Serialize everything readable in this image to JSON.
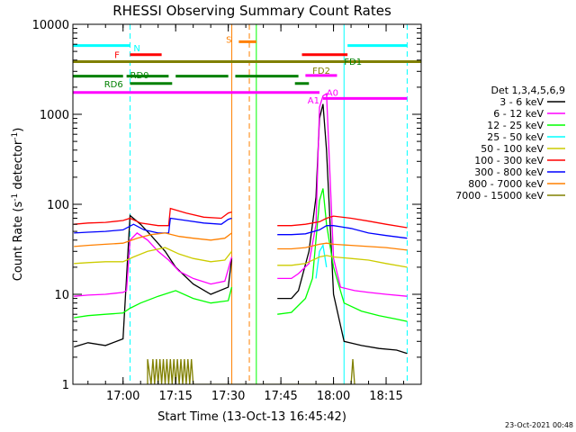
{
  "chart_data": {
    "type": "line",
    "title": "RHESSI Observing Summary Count Rates",
    "xlabel": "Start Time (13-Oct-13 16:45:42)",
    "ylabel": "Count Rate (s",
    "ylabel_sup1": "-1",
    "ylabel_mid": " detector",
    "ylabel_sup2": "-1",
    "ylabel_end": ")",
    "y_scale": "log",
    "ylim": [
      1,
      10000
    ],
    "xlim": [
      "16:45:42",
      "18:25:00"
    ],
    "x_ticks": [
      {
        "t": "17:00",
        "label": "17:00"
      },
      {
        "t": "17:15",
        "label": "17:15"
      },
      {
        "t": "17:30",
        "label": "17:30"
      },
      {
        "t": "17:45",
        "label": "17:45"
      },
      {
        "t": "18:00",
        "label": "18:00"
      },
      {
        "t": "18:15",
        "label": "18:15"
      }
    ],
    "y_ticks": [
      {
        "v": 1,
        "label": "1"
      },
      {
        "v": 10,
        "label": "10"
      },
      {
        "v": 100,
        "label": "100"
      },
      {
        "v": 1000,
        "label": "1000"
      },
      {
        "v": 10000,
        "label": "10000"
      }
    ],
    "legend_title": "Det 1,3,4,5,6,9",
    "legend_position": "right",
    "timestamp": "23-Oct-2021 00:48",
    "series": [
      {
        "name": "3 - 6 keV",
        "color": "#000000",
        "points": [
          [
            "16:46",
            2.6
          ],
          [
            "16:50",
            2.9
          ],
          [
            "16:55",
            2.7
          ],
          [
            "17:00",
            3.2
          ],
          [
            "17:02",
            75
          ],
          [
            "17:05",
            60
          ],
          [
            "17:08",
            45
          ],
          [
            "17:12",
            30
          ],
          [
            "17:15",
            20
          ],
          [
            "17:20",
            13
          ],
          [
            "17:25",
            10
          ],
          [
            "17:30",
            12
          ],
          [
            "17:31",
            25
          ],
          [
            "17:41",
            null
          ],
          [
            "17:44",
            9
          ],
          [
            "17:48",
            9
          ],
          [
            "17:50",
            11
          ],
          [
            "17:53",
            30
          ],
          [
            "17:55",
            120
          ],
          [
            "17:56",
            900
          ],
          [
            "17:57",
            1300
          ],
          [
            "17:58",
            400
          ],
          [
            "18:00",
            10
          ],
          [
            "18:03",
            3.0
          ],
          [
            "18:08",
            2.7
          ],
          [
            "18:13",
            2.5
          ],
          [
            "18:18",
            2.4
          ],
          [
            "18:21",
            2.2
          ]
        ]
      },
      {
        "name": "6 - 12 keV",
        "color": "#ff00ff",
        "points": [
          [
            "16:46",
            9.5
          ],
          [
            "16:50",
            9.8
          ],
          [
            "16:55",
            10
          ],
          [
            "17:00",
            10.5
          ],
          [
            "17:01",
            11
          ],
          [
            "17:02",
            40
          ],
          [
            "17:04",
            48
          ],
          [
            "17:07",
            40
          ],
          [
            "17:10",
            30
          ],
          [
            "17:13",
            24
          ],
          [
            "17:16",
            18
          ],
          [
            "17:20",
            15
          ],
          [
            "17:25",
            13
          ],
          [
            "17:29",
            14
          ],
          [
            "17:31",
            26
          ],
          [
            "17:41",
            null
          ],
          [
            "17:44",
            15
          ],
          [
            "17:48",
            15
          ],
          [
            "17:50",
            17
          ],
          [
            "17:53",
            22
          ],
          [
            "17:55",
            60
          ],
          [
            "17:56",
            1200
          ],
          [
            "17:57",
            1600
          ],
          [
            "17:58",
            1700
          ],
          [
            "18:00",
            25
          ],
          [
            "18:02",
            12
          ],
          [
            "18:06",
            11
          ],
          [
            "18:10",
            10.5
          ],
          [
            "18:15",
            10
          ],
          [
            "18:21",
            9.5
          ]
        ]
      },
      {
        "name": "12 - 25 keV",
        "color": "#00ff00",
        "points": [
          [
            "16:46",
            5.5
          ],
          [
            "16:50",
            5.8
          ],
          [
            "16:55",
            6
          ],
          [
            "17:00",
            6.2
          ],
          [
            "17:02",
            7
          ],
          [
            "17:05",
            8
          ],
          [
            "17:10",
            9.5
          ],
          [
            "17:15",
            11
          ],
          [
            "17:20",
            9
          ],
          [
            "17:25",
            8
          ],
          [
            "17:30",
            8.5
          ],
          [
            "17:31",
            12
          ],
          [
            "17:41",
            null
          ],
          [
            "17:44",
            6
          ],
          [
            "17:48",
            6.3
          ],
          [
            "17:52",
            9
          ],
          [
            "17:54",
            15
          ],
          [
            "17:56",
            110
          ],
          [
            "17:57",
            150
          ],
          [
            "17:58",
            60
          ],
          [
            "18:00",
            20
          ],
          [
            "18:03",
            8
          ],
          [
            "18:08",
            6.5
          ],
          [
            "18:13",
            5.8
          ],
          [
            "18:18",
            5.3
          ],
          [
            "18:21",
            5
          ]
        ]
      },
      {
        "name": "25 - 50 keV",
        "color": "#00ffff",
        "points": [
          [
            "17:55",
            15
          ],
          [
            "17:56",
            30
          ],
          [
            "17:57",
            35
          ],
          [
            "17:58",
            20
          ],
          [
            "17:59",
            null
          ]
        ]
      },
      {
        "name": "50 - 100 keV",
        "color": "#cccc00",
        "points": [
          [
            "16:46",
            22
          ],
          [
            "16:50",
            22.5
          ],
          [
            "16:55",
            23
          ],
          [
            "17:00",
            23
          ],
          [
            "17:03",
            26
          ],
          [
            "17:07",
            30
          ],
          [
            "17:12",
            33
          ],
          [
            "17:16",
            28
          ],
          [
            "17:20",
            25
          ],
          [
            "17:25",
            23
          ],
          [
            "17:29",
            24
          ],
          [
            "17:31",
            30
          ],
          [
            "17:41",
            null
          ],
          [
            "17:44",
            21
          ],
          [
            "17:48",
            21
          ],
          [
            "17:52",
            22
          ],
          [
            "17:56",
            26
          ],
          [
            "17:58",
            27
          ],
          [
            "18:00",
            26
          ],
          [
            "18:05",
            25
          ],
          [
            "18:10",
            24
          ],
          [
            "18:15",
            22
          ],
          [
            "18:21",
            20
          ]
        ]
      },
      {
        "name": "100 - 300 keV",
        "color": "#ff0000",
        "points": [
          [
            "16:46",
            60
          ],
          [
            "16:50",
            62
          ],
          [
            "16:55",
            63
          ],
          [
            "17:00",
            66
          ],
          [
            "17:02",
            70
          ],
          [
            "17:05",
            62
          ],
          [
            "17:10",
            58
          ],
          [
            "17:13",
            58
          ],
          [
            "17:13.5",
            90
          ],
          [
            "17:18",
            80
          ],
          [
            "17:23",
            72
          ],
          [
            "17:28",
            70
          ],
          [
            "17:30",
            80
          ],
          [
            "17:31",
            82
          ],
          [
            "17:41",
            null
          ],
          [
            "17:44",
            58
          ],
          [
            "17:48",
            58
          ],
          [
            "17:52",
            60
          ],
          [
            "17:56",
            64
          ],
          [
            "17:58",
            70
          ],
          [
            "18:00",
            74
          ],
          [
            "18:05",
            70
          ],
          [
            "18:10",
            65
          ],
          [
            "18:15",
            60
          ],
          [
            "18:21",
            55
          ]
        ]
      },
      {
        "name": "300 - 800 keV",
        "color": "#0000ff",
        "points": [
          [
            "16:46",
            48
          ],
          [
            "16:50",
            49
          ],
          [
            "16:55",
            50
          ],
          [
            "17:00",
            52
          ],
          [
            "17:03",
            60
          ],
          [
            "17:06",
            52
          ],
          [
            "17:10",
            48
          ],
          [
            "17:13",
            48
          ],
          [
            "17:13.5",
            70
          ],
          [
            "17:18",
            66
          ],
          [
            "17:23",
            62
          ],
          [
            "17:28",
            60
          ],
          [
            "17:30",
            68
          ],
          [
            "17:31",
            70
          ],
          [
            "17:41",
            null
          ],
          [
            "17:44",
            46
          ],
          [
            "17:48",
            46
          ],
          [
            "17:52",
            47
          ],
          [
            "17:56",
            52
          ],
          [
            "17:58",
            58
          ],
          [
            "18:00",
            58
          ],
          [
            "18:05",
            54
          ],
          [
            "18:10",
            48
          ],
          [
            "18:15",
            45
          ],
          [
            "18:21",
            42
          ]
        ]
      },
      {
        "name": "800 - 7000 keV",
        "color": "#ff8000",
        "points": [
          [
            "16:46",
            34
          ],
          [
            "16:50",
            35
          ],
          [
            "16:55",
            36
          ],
          [
            "17:00",
            37
          ],
          [
            "17:04",
            42
          ],
          [
            "17:08",
            46
          ],
          [
            "17:12",
            48
          ],
          [
            "17:16",
            44
          ],
          [
            "17:20",
            42
          ],
          [
            "17:25",
            40
          ],
          [
            "17:29",
            42
          ],
          [
            "17:31",
            48
          ],
          [
            "17:41",
            null
          ],
          [
            "17:44",
            32
          ],
          [
            "17:48",
            32
          ],
          [
            "17:52",
            33
          ],
          [
            "17:56",
            36
          ],
          [
            "17:58",
            37
          ],
          [
            "18:00",
            36
          ],
          [
            "18:05",
            35
          ],
          [
            "18:10",
            34
          ],
          [
            "18:15",
            33
          ],
          [
            "18:21",
            31
          ]
        ]
      },
      {
        "name": "7000 - 15000 keV",
        "color": "#808000",
        "points": [
          [
            "17:07",
            1
          ],
          [
            "17:07",
            1.9
          ],
          [
            "17:08",
            1
          ],
          [
            "17:08.5",
            1.9
          ],
          [
            "17:09",
            1
          ],
          [
            "17:09.5",
            1.9
          ],
          [
            "17:10",
            1
          ],
          [
            "17:10.5",
            1.9
          ],
          [
            "17:11",
            1
          ],
          [
            "17:11.5",
            1.9
          ],
          [
            "17:12",
            1
          ],
          [
            "17:12.5",
            1.9
          ],
          [
            "17:13",
            1
          ],
          [
            "17:13.5",
            1.9
          ],
          [
            "17:14",
            1
          ],
          [
            "17:14.5",
            1.9
          ],
          [
            "17:15",
            1
          ],
          [
            "17:15.5",
            1.9
          ],
          [
            "17:16",
            1
          ],
          [
            "17:16.5",
            1.9
          ],
          [
            "17:17",
            1
          ],
          [
            "17:17.5",
            1.9
          ],
          [
            "17:18",
            1
          ],
          [
            "17:18.5",
            1.9
          ],
          [
            "17:19",
            1
          ],
          [
            "17:19.5",
            1.9
          ],
          [
            "17:20",
            1
          ],
          [
            "18:05",
            1
          ],
          [
            "18:05.5",
            1.9
          ],
          [
            "18:06",
            1
          ]
        ]
      }
    ],
    "flags": [
      {
        "label": "N",
        "color": "#00ffff",
        "y": 5800,
        "segments": [
          [
            "16:45:42",
            "17:02"
          ],
          [
            "18:04",
            "18:21"
          ]
        ],
        "label_t": "17:03",
        "label_y": 5500,
        "anchor": "start"
      },
      {
        "label": "S",
        "color": "#ff8000",
        "y": 6400,
        "segments": [
          [
            "17:33",
            "17:38"
          ]
        ],
        "label_t": "17:31",
        "label_y": 6800,
        "anchor": "end"
      },
      {
        "label": "F",
        "color": "#ff0000",
        "y": 4600,
        "segments": [
          [
            "17:02",
            "17:11"
          ],
          [
            "17:51",
            "18:04"
          ]
        ],
        "label_t": "16:59",
        "label_y": 4600,
        "anchor": "end"
      },
      {
        "label": "FD1",
        "color": "#008000",
        "y": 3850,
        "segments": [
          [
            "16:45:42",
            "18:25"
          ]
        ],
        "label_t": "18:03",
        "label_y": 3900,
        "anchor": "start",
        "line_color": "#808000"
      },
      {
        "label": "RD0",
        "color": "#008000",
        "y": 2650,
        "segments": [
          [
            "16:45:42",
            "17:00"
          ],
          [
            "17:01",
            "17:13"
          ],
          [
            "17:15",
            "17:30"
          ],
          [
            "17:32",
            "17:50"
          ]
        ],
        "label_t": "17:02",
        "label_y": 2750,
        "anchor": "start"
      },
      {
        "label": "FD2",
        "color": "#808000",
        "y": 2700,
        "segments": [
          [
            "17:52",
            "18:01"
          ]
        ],
        "label_t": "17:54",
        "label_y": 3100,
        "anchor": "start",
        "line_color": "#ff00ff"
      },
      {
        "label": "RD6",
        "color": "#008000",
        "y": 2200,
        "segments": [
          [
            "17:02",
            "17:14"
          ],
          [
            "17:49",
            "17:53"
          ]
        ],
        "label_t": "17:00",
        "label_y": 2200,
        "anchor": "end"
      },
      {
        "label": "A1",
        "color": "#ff00ff",
        "y": 1500,
        "segments": [
          [
            "17:57",
            "18:21"
          ]
        ],
        "label_t": "17:56",
        "label_y": 1450,
        "anchor": "end"
      },
      {
        "label": "A0",
        "color": "#ff00ff",
        "y": 1750,
        "segments": [
          [
            "16:45:42",
            "17:56"
          ]
        ],
        "label_t": "17:58",
        "label_y": 1750,
        "anchor": "start"
      }
    ],
    "vertical_markers": [
      {
        "t": "17:02",
        "color": "#00ffff",
        "style": "dashed"
      },
      {
        "t": "17:31",
        "color": "#ff8000",
        "style": "solid"
      },
      {
        "t": "17:36",
        "color": "#ff8000",
        "style": "dashed"
      },
      {
        "t": "17:38",
        "color": "#00ff00",
        "style": "solid"
      },
      {
        "t": "18:03",
        "color": "#00ffff",
        "style": "solid"
      },
      {
        "t": "18:21",
        "color": "#00ffff",
        "style": "dashed"
      }
    ]
  }
}
